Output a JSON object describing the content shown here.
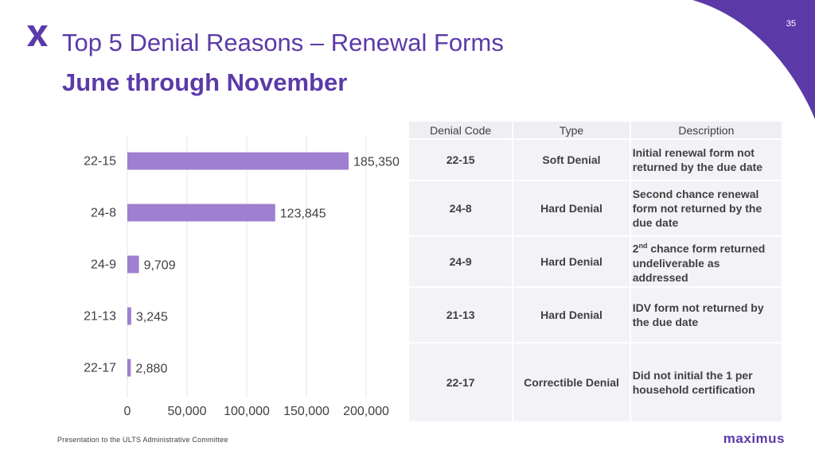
{
  "page": {
    "slide_number": "35",
    "title": "Top 5 Denial Reasons – Renewal Forms",
    "subtitle": "June through November",
    "footer": "Presentation to the ULTS Administrative Committee",
    "brand": "maximus",
    "accent_color": "#5b3aa8",
    "bar_color": "#9f7fcf"
  },
  "chart_data": {
    "type": "bar",
    "orientation": "horizontal",
    "categories": [
      "22-15",
      "24-8",
      "24-9",
      "21-13",
      "22-17"
    ],
    "values": [
      185350,
      123845,
      9709,
      3245,
      2880
    ],
    "value_labels": [
      "185,350",
      "123,845",
      "9,709",
      "3,245",
      "2,880"
    ],
    "xlim": [
      0,
      200000
    ],
    "xticks": [
      0,
      50000,
      100000,
      150000,
      200000
    ],
    "xtick_labels": [
      "0",
      "50,000",
      "100,000",
      "150,000",
      "200,000"
    ],
    "grid": true,
    "legend": "none"
  },
  "table": {
    "headers": [
      "Denial Code",
      "Type",
      "Description"
    ],
    "rows": [
      {
        "code": "22-15",
        "type": "Soft Denial",
        "description": "Initial renewal form not returned by the due date"
      },
      {
        "code": "24-8",
        "type": "Hard Denial",
        "description": "Second chance renewal form not returned by the due date"
      },
      {
        "code": "24-9",
        "type": "Hard Denial",
        "description_prefix": "2",
        "description_sup": "nd",
        "description": " chance form returned undeliverable as addressed"
      },
      {
        "code": "21-13",
        "type": "Hard Denial",
        "description": "IDV form not returned by the due date"
      },
      {
        "code": "22-17",
        "type": "Correctible Denial",
        "description": "Did not initial the 1 per household certification"
      }
    ]
  }
}
